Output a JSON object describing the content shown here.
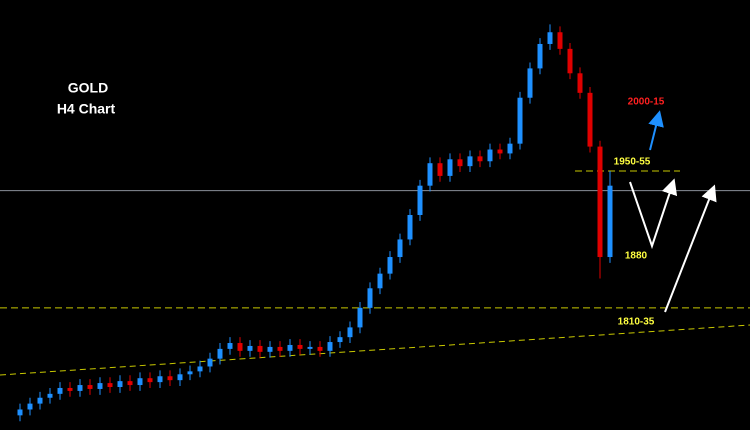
{
  "chart_data": {
    "type": "candlestick",
    "title": "GOLD",
    "subtitle": "H4 Chart",
    "ylim": [
      1685,
      2125
    ],
    "up_color": "#1e90ff",
    "down_color": "#e00000",
    "current_price": 1930,
    "levels": [
      {
        "value": 1950,
        "label": "1950-55",
        "color": "#c8c800"
      },
      {
        "value": 1810,
        "label": "1810-35",
        "color": "#c8c800"
      }
    ],
    "annotations": [
      {
        "text": "2000-15",
        "color": "#ff2020"
      },
      {
        "text": "1880",
        "color": "#ffff40"
      }
    ],
    "open": [
      1700,
      1706,
      1712,
      1718,
      1722,
      1728,
      1725,
      1731,
      1727,
      1733,
      1729,
      1735,
      1731,
      1738,
      1734,
      1740,
      1736,
      1742,
      1745,
      1750,
      1758,
      1768,
      1774,
      1766,
      1771,
      1765,
      1770,
      1766,
      1772,
      1768,
      1770,
      1766,
      1775,
      1780,
      1790,
      1810,
      1830,
      1845,
      1862,
      1880,
      1905,
      1935,
      1958,
      1945,
      1962,
      1955,
      1965,
      1960,
      1972,
      1968,
      1978,
      2025,
      2055,
      2080,
      2092,
      2075,
      2050,
      2030,
      1975,
      1862
    ],
    "high": [
      1712,
      1718,
      1724,
      1728,
      1734,
      1734,
      1737,
      1737,
      1739,
      1739,
      1741,
      1741,
      1744,
      1744,
      1746,
      1746,
      1748,
      1751,
      1756,
      1764,
      1774,
      1780,
      1780,
      1777,
      1777,
      1776,
      1776,
      1778,
      1778,
      1776,
      1776,
      1781,
      1786,
      1796,
      1816,
      1836,
      1851,
      1868,
      1886,
      1911,
      1941,
      1964,
      1964,
      1968,
      1968,
      1971,
      1971,
      1978,
      1978,
      1984,
      2031,
      2061,
      2086,
      2100,
      2098,
      2081,
      2056,
      2036,
      1981,
      1950
    ],
    "low": [
      1694,
      1700,
      1706,
      1712,
      1716,
      1719,
      1719,
      1721,
      1721,
      1723,
      1723,
      1725,
      1725,
      1728,
      1728,
      1730,
      1730,
      1736,
      1739,
      1744,
      1752,
      1762,
      1760,
      1760,
      1759,
      1759,
      1760,
      1760,
      1762,
      1762,
      1760,
      1760,
      1769,
      1774,
      1784,
      1804,
      1824,
      1839,
      1856,
      1874,
      1899,
      1929,
      1939,
      1939,
      1949,
      1949,
      1954,
      1954,
      1962,
      1962,
      1972,
      2019,
      2049,
      2074,
      2069,
      2044,
      2024,
      1969,
      1840,
      1856
    ],
    "close": [
      1706,
      1712,
      1718,
      1722,
      1728,
      1725,
      1731,
      1727,
      1733,
      1729,
      1735,
      1731,
      1738,
      1734,
      1740,
      1736,
      1742,
      1745,
      1750,
      1758,
      1768,
      1774,
      1766,
      1771,
      1765,
      1770,
      1766,
      1772,
      1768,
      1770,
      1766,
      1775,
      1780,
      1790,
      1810,
      1830,
      1845,
      1862,
      1880,
      1905,
      1935,
      1958,
      1945,
      1962,
      1955,
      1965,
      1960,
      1972,
      1968,
      1978,
      2025,
      2055,
      2080,
      2092,
      2075,
      2050,
      2030,
      1975,
      1862,
      1935
    ]
  }
}
